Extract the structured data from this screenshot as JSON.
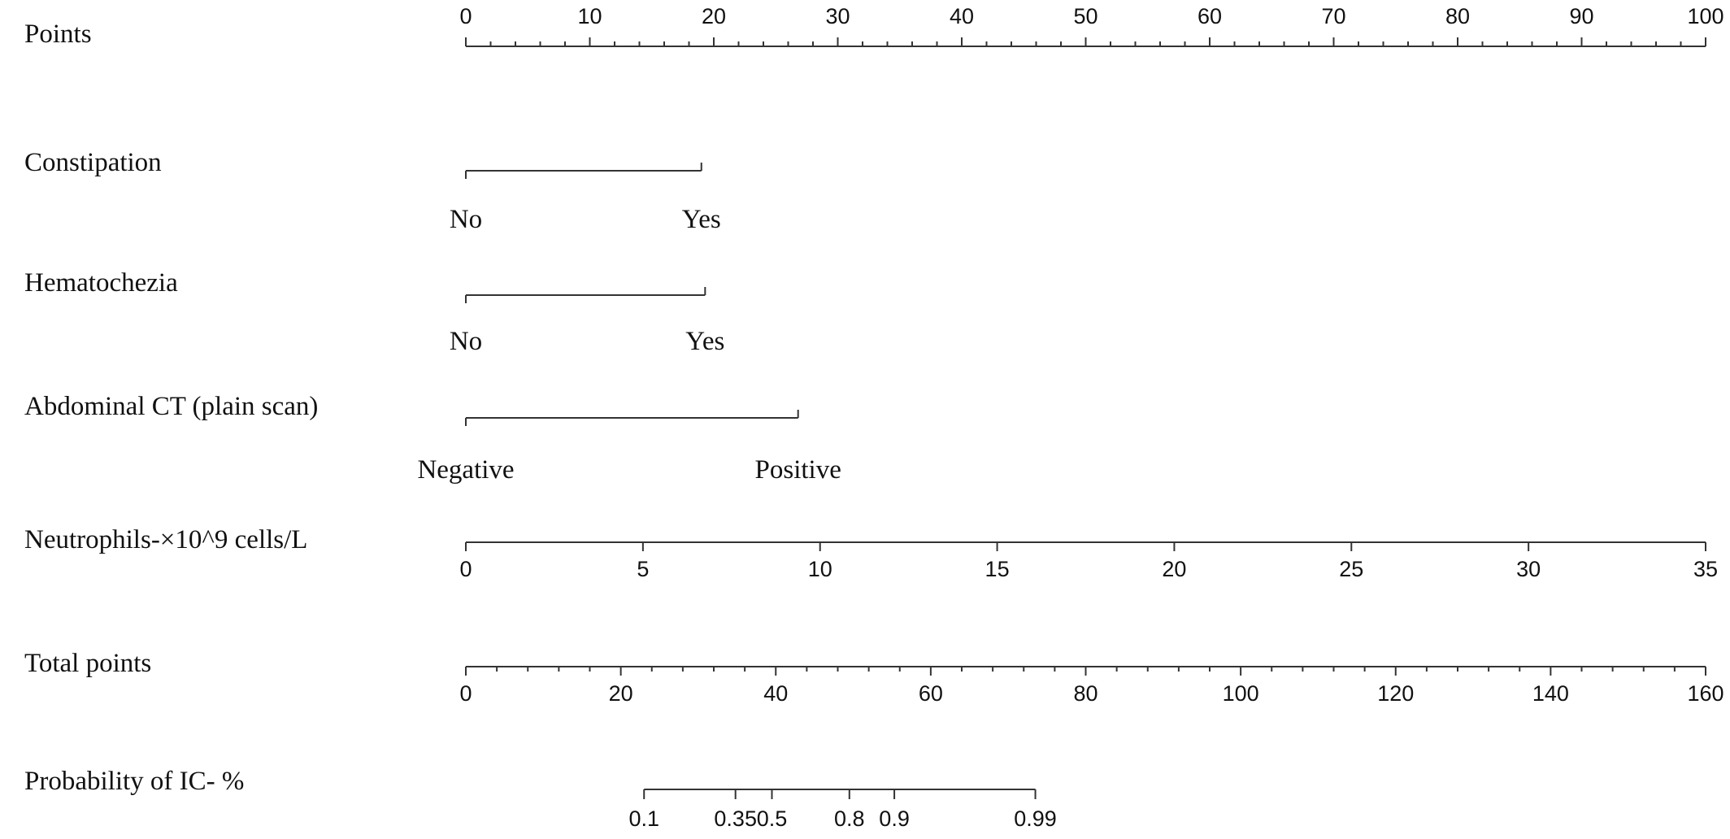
{
  "chart_data": {
    "type": "nomogram",
    "rows": [
      {
        "id": "points",
        "label": "Points",
        "kind": "scale",
        "range": [
          0,
          100
        ],
        "ticks": [
          0,
          10,
          20,
          30,
          40,
          50,
          60,
          70,
          80,
          90,
          100
        ],
        "tick_labels": [
          "0",
          "10",
          "20",
          "30",
          "40",
          "50",
          "60",
          "70",
          "80",
          "90",
          "100"
        ],
        "minor_step": 2
      },
      {
        "id": "constipation",
        "label": "Constipation",
        "kind": "categorical",
        "levels": [
          {
            "label": "No",
            "points": 0
          },
          {
            "label": "Yes",
            "points": 19
          }
        ]
      },
      {
        "id": "hematochezia",
        "label": "Hematochezia",
        "kind": "categorical",
        "levels": [
          {
            "label": "No",
            "points": 0
          },
          {
            "label": "Yes",
            "points": 19.3
          }
        ]
      },
      {
        "id": "abdominal_ct",
        "label": "Abdominal CT (plain scan)",
        "kind": "categorical",
        "levels": [
          {
            "label": "Negative",
            "points": 0
          },
          {
            "label": "Positive",
            "points": 26.8
          }
        ]
      },
      {
        "id": "neutrophils",
        "label": "Neutrophils-×10^9 cells/L",
        "kind": "scale",
        "range": [
          0,
          35
        ],
        "ticks": [
          0,
          5,
          10,
          15,
          20,
          25,
          30,
          35
        ],
        "tick_labels": [
          "0",
          "5",
          "10",
          "15",
          "20",
          "25",
          "30",
          "35"
        ],
        "points_range": [
          0,
          100
        ]
      },
      {
        "id": "total_points",
        "label": "Total points",
        "kind": "scale",
        "range": [
          0,
          160
        ],
        "ticks": [
          0,
          20,
          40,
          60,
          80,
          100,
          120,
          140,
          160
        ],
        "tick_labels": [
          "0",
          "20",
          "40",
          "60",
          "80",
          "100",
          "120",
          "140",
          "160"
        ],
        "minor_step": 4
      },
      {
        "id": "probability",
        "label": "Probability of IC- %",
        "kind": "probability",
        "ticks": [
          {
            "label": "0.1",
            "total_points": 23
          },
          {
            "label": "0.35",
            "total_points": 34.8
          },
          {
            "label": "0.5",
            "total_points": 39.5
          },
          {
            "label": "0.8",
            "total_points": 49.5
          },
          {
            "label": "0.9",
            "total_points": 55.3
          },
          {
            "label": "0.99",
            "total_points": 73.5
          }
        ]
      }
    ]
  }
}
